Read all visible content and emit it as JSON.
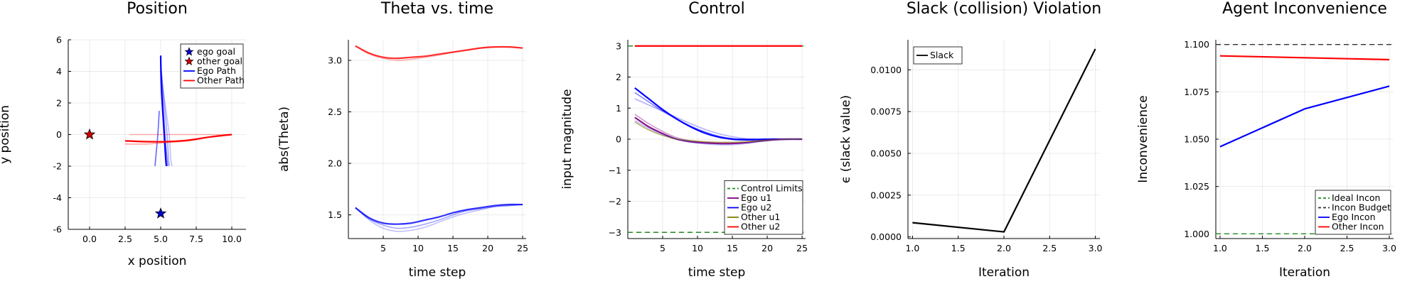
{
  "chart_data": [
    {
      "type": "scatter",
      "title": "Position",
      "xlabel": "x position",
      "ylabel": "y position",
      "xlim": [
        -1.5,
        11
      ],
      "ylim": [
        -6,
        6
      ],
      "xticks": [
        0,
        2.5,
        5,
        7.5,
        10
      ],
      "xtick_labels": [
        "0.0",
        "2.5",
        "5.0",
        "7.5",
        "10.0"
      ],
      "yticks": [
        -6,
        -4,
        -2,
        0,
        2,
        4,
        6
      ],
      "grid": true,
      "legend_position": "top-right",
      "legend": [
        {
          "label": "ego goal",
          "kind": "star",
          "color": "#0000cc"
        },
        {
          "label": "other goal",
          "kind": "star",
          "color": "#cc0000"
        },
        {
          "label": "Ego Path",
          "kind": "line",
          "color": "#0000ff"
        },
        {
          "label": "Other Path",
          "kind": "line",
          "color": "#ff0000"
        }
      ],
      "markers": [
        {
          "x": 5.0,
          "y": -5.0,
          "color": "#0000cc"
        },
        {
          "x": 0.0,
          "y": 0.0,
          "color": "#cc0000"
        }
      ],
      "series": [
        {
          "color": "#0000ff",
          "opacity": 0.25,
          "x": [
            5.0,
            5.3,
            5.6,
            5.7,
            5.8
          ],
          "y": [
            4.0,
            2.0,
            0.0,
            -1.5,
            -2.0
          ]
        },
        {
          "color": "#0000ff",
          "opacity": 0.35,
          "x": [
            5.0,
            5.2,
            5.45,
            5.55,
            5.6
          ],
          "y": [
            4.5,
            2.5,
            0.0,
            -1.5,
            -2.0
          ]
        },
        {
          "color": "#0000ff",
          "opacity": 0.5,
          "x": [
            5.0,
            5.1,
            5.3,
            5.45,
            5.5
          ],
          "y": [
            4.8,
            3.0,
            0.0,
            -1.5,
            -2.0
          ]
        },
        {
          "color": "#0000ff",
          "opacity": 1.0,
          "x": [
            5.0,
            5.05,
            5.25,
            5.35,
            5.4
          ],
          "y": [
            5.0,
            3.0,
            0.0,
            -1.5,
            -2.0
          ]
        },
        {
          "color": "#0000ff",
          "opacity": 0.6,
          "x": [
            4.9,
            4.8,
            4.7,
            4.6
          ],
          "y": [
            1.5,
            0.0,
            -1.0,
            -2.0
          ]
        },
        {
          "color": "#ff0000",
          "opacity": 0.3,
          "x": [
            2.8,
            4.0,
            5.5,
            7.0,
            8.5,
            10.0
          ],
          "y": [
            0.0,
            0.0,
            0.0,
            0.0,
            0.0,
            0.0
          ]
        },
        {
          "color": "#ff0000",
          "opacity": 0.35,
          "x": [
            2.5,
            4.0,
            5.5,
            7.0,
            8.5,
            10.0
          ],
          "y": [
            -0.6,
            -0.6,
            -0.5,
            -0.4,
            -0.15,
            0.0
          ]
        },
        {
          "color": "#ff0000",
          "opacity": 1.0,
          "x": [
            2.5,
            4.0,
            5.5,
            7.0,
            8.5,
            10.0
          ],
          "y": [
            -0.4,
            -0.45,
            -0.45,
            -0.35,
            -0.15,
            0.0
          ]
        }
      ]
    },
    {
      "type": "line",
      "title": "Theta vs. time",
      "xlabel": "time step",
      "ylabel": "abs(Theta)",
      "xlim": [
        0,
        25.5
      ],
      "ylim": [
        1.27,
        3.2
      ],
      "xticks": [
        5,
        10,
        15,
        20,
        25
      ],
      "xtick_labels": [
        "5",
        "10",
        "15",
        "20",
        "25"
      ],
      "yticks": [
        1.5,
        2.0,
        2.5,
        3.0
      ],
      "ytick_labels": [
        "1.5",
        "2.0",
        "2.5",
        "3.0"
      ],
      "grid": true,
      "x": [
        1,
        3,
        5,
        7,
        9,
        11,
        13,
        15,
        17,
        19,
        21,
        23,
        25
      ],
      "series": [
        {
          "color": "#0000ff",
          "opacity": 0.25,
          "values": [
            1.57,
            1.45,
            1.37,
            1.34,
            1.35,
            1.38,
            1.43,
            1.48,
            1.52,
            1.55,
            1.58,
            1.59,
            1.6
          ]
        },
        {
          "color": "#0000ff",
          "opacity": 0.35,
          "values": [
            1.57,
            1.46,
            1.4,
            1.37,
            1.38,
            1.41,
            1.45,
            1.5,
            1.54,
            1.56,
            1.58,
            1.59,
            1.6
          ]
        },
        {
          "color": "#0000ff",
          "opacity": 0.8,
          "values": [
            1.57,
            1.47,
            1.42,
            1.41,
            1.42,
            1.45,
            1.48,
            1.52,
            1.55,
            1.57,
            1.59,
            1.6,
            1.6
          ]
        },
        {
          "color": "#ff0000",
          "opacity": 0.3,
          "values": [
            3.14,
            3.06,
            3.02,
            3.0,
            3.01,
            3.03,
            3.05,
            3.08,
            3.1,
            3.12,
            3.13,
            3.13,
            3.12
          ]
        },
        {
          "color": "#ff0000",
          "opacity": 0.8,
          "values": [
            3.14,
            3.07,
            3.03,
            3.02,
            3.03,
            3.04,
            3.06,
            3.08,
            3.1,
            3.12,
            3.13,
            3.13,
            3.12
          ]
        }
      ]
    },
    {
      "type": "line",
      "title": "Control",
      "xlabel": "time step",
      "ylabel": "input magnitude",
      "xlim": [
        0,
        25.5
      ],
      "ylim": [
        -3.2,
        3.2
      ],
      "xticks": [
        5,
        10,
        15,
        20,
        25
      ],
      "xtick_labels": [
        "5",
        "10",
        "15",
        "20",
        "25"
      ],
      "yticks": [
        -3,
        -2,
        -1,
        0,
        1,
        2,
        3
      ],
      "ytick_labels": [
        "−3",
        "−2",
        "−1",
        "0",
        "1",
        "2",
        "3"
      ],
      "grid": true,
      "legend_position": "bottom-right",
      "legend": [
        {
          "label": "Control Limits",
          "kind": "dashed",
          "color": "#228b22"
        },
        {
          "label": "Ego u1",
          "kind": "line",
          "color": "#800080"
        },
        {
          "label": "Ego u2",
          "kind": "line",
          "color": "#0000ff"
        },
        {
          "label": "Other u1",
          "kind": "line",
          "color": "#808000"
        },
        {
          "label": "Other u2",
          "kind": "line",
          "color": "#ff0000"
        }
      ],
      "hlines": [
        {
          "y": 3.0,
          "color": "#228b22",
          "dashed": true
        },
        {
          "y": -3.0,
          "color": "#228b22",
          "dashed": true
        }
      ],
      "x": [
        1,
        3,
        5,
        7,
        9,
        11,
        13,
        15,
        17,
        19,
        21,
        23,
        25
      ],
      "series": [
        {
          "color": "#ff0000",
          "opacity": 1.0,
          "values": [
            3.0,
            3.0,
            3.0,
            3.0,
            3.0,
            3.0,
            3.0,
            3.0,
            3.0,
            3.0,
            3.0,
            3.0,
            3.0
          ]
        },
        {
          "color": "#0000ff",
          "opacity": 0.3,
          "values": [
            1.3,
            1.1,
            0.9,
            0.7,
            0.5,
            0.32,
            0.18,
            0.08,
            0.02,
            0.0,
            0.0,
            0.0,
            0.0
          ]
        },
        {
          "color": "#0000ff",
          "opacity": 0.5,
          "values": [
            1.5,
            1.2,
            0.9,
            0.65,
            0.42,
            0.24,
            0.1,
            0.02,
            0.0,
            0.0,
            0.0,
            0.0,
            0.0
          ]
        },
        {
          "color": "#0000ff",
          "opacity": 1.0,
          "values": [
            1.65,
            1.3,
            0.95,
            0.65,
            0.4,
            0.2,
            0.07,
            0.0,
            -0.02,
            -0.01,
            0.0,
            0.0,
            0.0
          ]
        },
        {
          "color": "#800080",
          "opacity": 0.4,
          "values": [
            0.8,
            0.5,
            0.25,
            0.05,
            -0.05,
            -0.1,
            -0.12,
            -0.12,
            -0.1,
            -0.05,
            -0.02,
            0.0,
            0.0
          ]
        },
        {
          "color": "#800080",
          "opacity": 0.9,
          "values": [
            0.7,
            0.4,
            0.18,
            0.0,
            -0.08,
            -0.12,
            -0.14,
            -0.14,
            -0.11,
            -0.06,
            -0.02,
            0.0,
            0.0
          ]
        },
        {
          "color": "#808000",
          "opacity": 0.6,
          "values": [
            0.55,
            0.3,
            0.12,
            0.0,
            -0.05,
            -0.08,
            -0.1,
            -0.1,
            -0.08,
            -0.05,
            -0.02,
            0.0,
            0.0
          ]
        },
        {
          "color": "#0000ff",
          "opacity": 0.25,
          "values": [
            0.6,
            0.35,
            0.15,
            0.0,
            -0.1,
            -0.15,
            -0.18,
            -0.18,
            -0.14,
            -0.08,
            -0.03,
            0.0,
            0.0
          ]
        }
      ]
    },
    {
      "type": "line",
      "title": "Slack (collision) Violation",
      "xlabel": "Iteration",
      "ylabel": "ϵ (slack value)",
      "xlim": [
        0.95,
        3.05
      ],
      "ylim": [
        -0.0001,
        0.0118
      ],
      "xticks": [
        1.0,
        1.5,
        2.0,
        2.5,
        3.0
      ],
      "xtick_labels": [
        "1.0",
        "1.5",
        "2.0",
        "2.5",
        "3.0"
      ],
      "yticks": [
        0.0,
        0.0025,
        0.005,
        0.0075,
        0.01
      ],
      "ytick_labels": [
        "0.0000",
        "0.0025",
        "0.0050",
        "0.0075",
        "0.0100"
      ],
      "grid": true,
      "legend_position": "top-left",
      "legend": [
        {
          "label": "Slack",
          "kind": "line",
          "color": "#000000"
        }
      ],
      "x": [
        1.0,
        2.0,
        3.0
      ],
      "series": [
        {
          "color": "#000000",
          "opacity": 1.0,
          "values": [
            0.00085,
            0.0003,
            0.01125
          ]
        }
      ]
    },
    {
      "type": "line",
      "title": "Agent Inconvenience",
      "xlabel": "Iteration",
      "ylabel": "Inconvenience",
      "xlim": [
        0.95,
        3.05
      ],
      "ylim": [
        0.9975,
        1.1025
      ],
      "xticks": [
        1.0,
        1.5,
        2.0,
        2.5,
        3.0
      ],
      "xtick_labels": [
        "1.0",
        "1.5",
        "2.0",
        "2.5",
        "3.0"
      ],
      "yticks": [
        1.0,
        1.025,
        1.05,
        1.075,
        1.1
      ],
      "ytick_labels": [
        "1.000",
        "1.025",
        "1.050",
        "1.075",
        "1.100"
      ],
      "grid": true,
      "legend_position": "bottom-right",
      "legend": [
        {
          "label": "Ideal Incon",
          "kind": "dashed",
          "color": "#228b22"
        },
        {
          "label": "Incon Budget",
          "kind": "dashed",
          "color": "#333333"
        },
        {
          "label": "Ego Incon",
          "kind": "line",
          "color": "#0000ff"
        },
        {
          "label": "Other Incon",
          "kind": "line",
          "color": "#ff0000"
        }
      ],
      "hlines": [
        {
          "y": 1.0,
          "color": "#228b22",
          "dashed": true
        },
        {
          "y": 1.1,
          "color": "#333333",
          "dashed": true
        }
      ],
      "x": [
        1.0,
        2.0,
        3.0
      ],
      "series": [
        {
          "color": "#0000ff",
          "opacity": 1.0,
          "values": [
            1.046,
            1.066,
            1.078
          ]
        },
        {
          "color": "#ff0000",
          "opacity": 1.0,
          "values": [
            1.094,
            1.093,
            1.092
          ]
        }
      ]
    }
  ]
}
